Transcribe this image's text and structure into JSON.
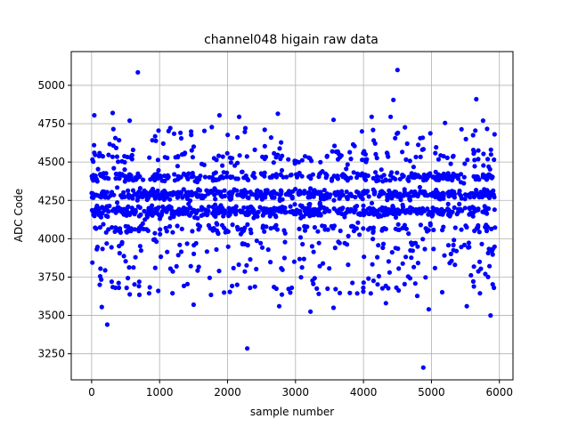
{
  "chart_data": {
    "type": "scatter",
    "title": "channel048 higain raw data",
    "xlabel": "sample number",
    "ylabel": "ADC Code",
    "xlim": [
      -300,
      6200
    ],
    "ylim": [
      3080,
      5220
    ],
    "xticks": [
      0,
      1000,
      2000,
      3000,
      4000,
      5000,
      6000
    ],
    "yticks": [
      3250,
      3500,
      3750,
      4000,
      4250,
      4500,
      4750,
      5000
    ],
    "grid": true,
    "legend": "none",
    "series": [
      {
        "color": "#0000ff",
        "marker": "circle",
        "x_range": [
          0,
          5940
        ],
        "bands": [
          {
            "center": 4180,
            "spread": 28,
            "weight": 0.34
          },
          {
            "center": 4290,
            "spread": 26,
            "weight": 0.3
          },
          {
            "center": 4405,
            "spread": 22,
            "weight": 0.18
          },
          {
            "center": 4065,
            "spread": 25,
            "weight": 0.1
          },
          {
            "center": 4530,
            "spread": 22,
            "weight": 0.04
          },
          {
            "center": 3950,
            "spread": 22,
            "weight": 0.02
          }
        ],
        "outliers": [
          {
            "x": 680,
            "y": 5085
          },
          {
            "x": 4500,
            "y": 5100
          },
          {
            "x": 4880,
            "y": 3160
          },
          {
            "x": 2290,
            "y": 3285
          },
          {
            "x": 230,
            "y": 3440
          },
          {
            "x": 5870,
            "y": 3500
          },
          {
            "x": 3220,
            "y": 3525
          },
          {
            "x": 150,
            "y": 3555
          },
          {
            "x": 5660,
            "y": 4910
          },
          {
            "x": 4440,
            "y": 4905
          },
          {
            "x": 40,
            "y": 4805
          },
          {
            "x": 310,
            "y": 4820
          },
          {
            "x": 1880,
            "y": 4805
          },
          {
            "x": 2170,
            "y": 4795
          },
          {
            "x": 2740,
            "y": 4815
          },
          {
            "x": 4120,
            "y": 4795
          },
          {
            "x": 4400,
            "y": 4795
          },
          {
            "x": 5200,
            "y": 4755
          },
          {
            "x": 3560,
            "y": 4775
          },
          {
            "x": 5760,
            "y": 4770
          },
          {
            "x": 560,
            "y": 4770
          },
          {
            "x": 120,
            "y": 3700
          },
          {
            "x": 350,
            "y": 3680
          },
          {
            "x": 980,
            "y": 3660
          },
          {
            "x": 1500,
            "y": 3570
          },
          {
            "x": 2760,
            "y": 3560
          },
          {
            "x": 3560,
            "y": 3550
          },
          {
            "x": 4330,
            "y": 3580
          },
          {
            "x": 4960,
            "y": 3540
          },
          {
            "x": 5520,
            "y": 3560
          },
          {
            "x": 5920,
            "y": 3680
          }
        ],
        "sparse_points": 300
      }
    ]
  }
}
